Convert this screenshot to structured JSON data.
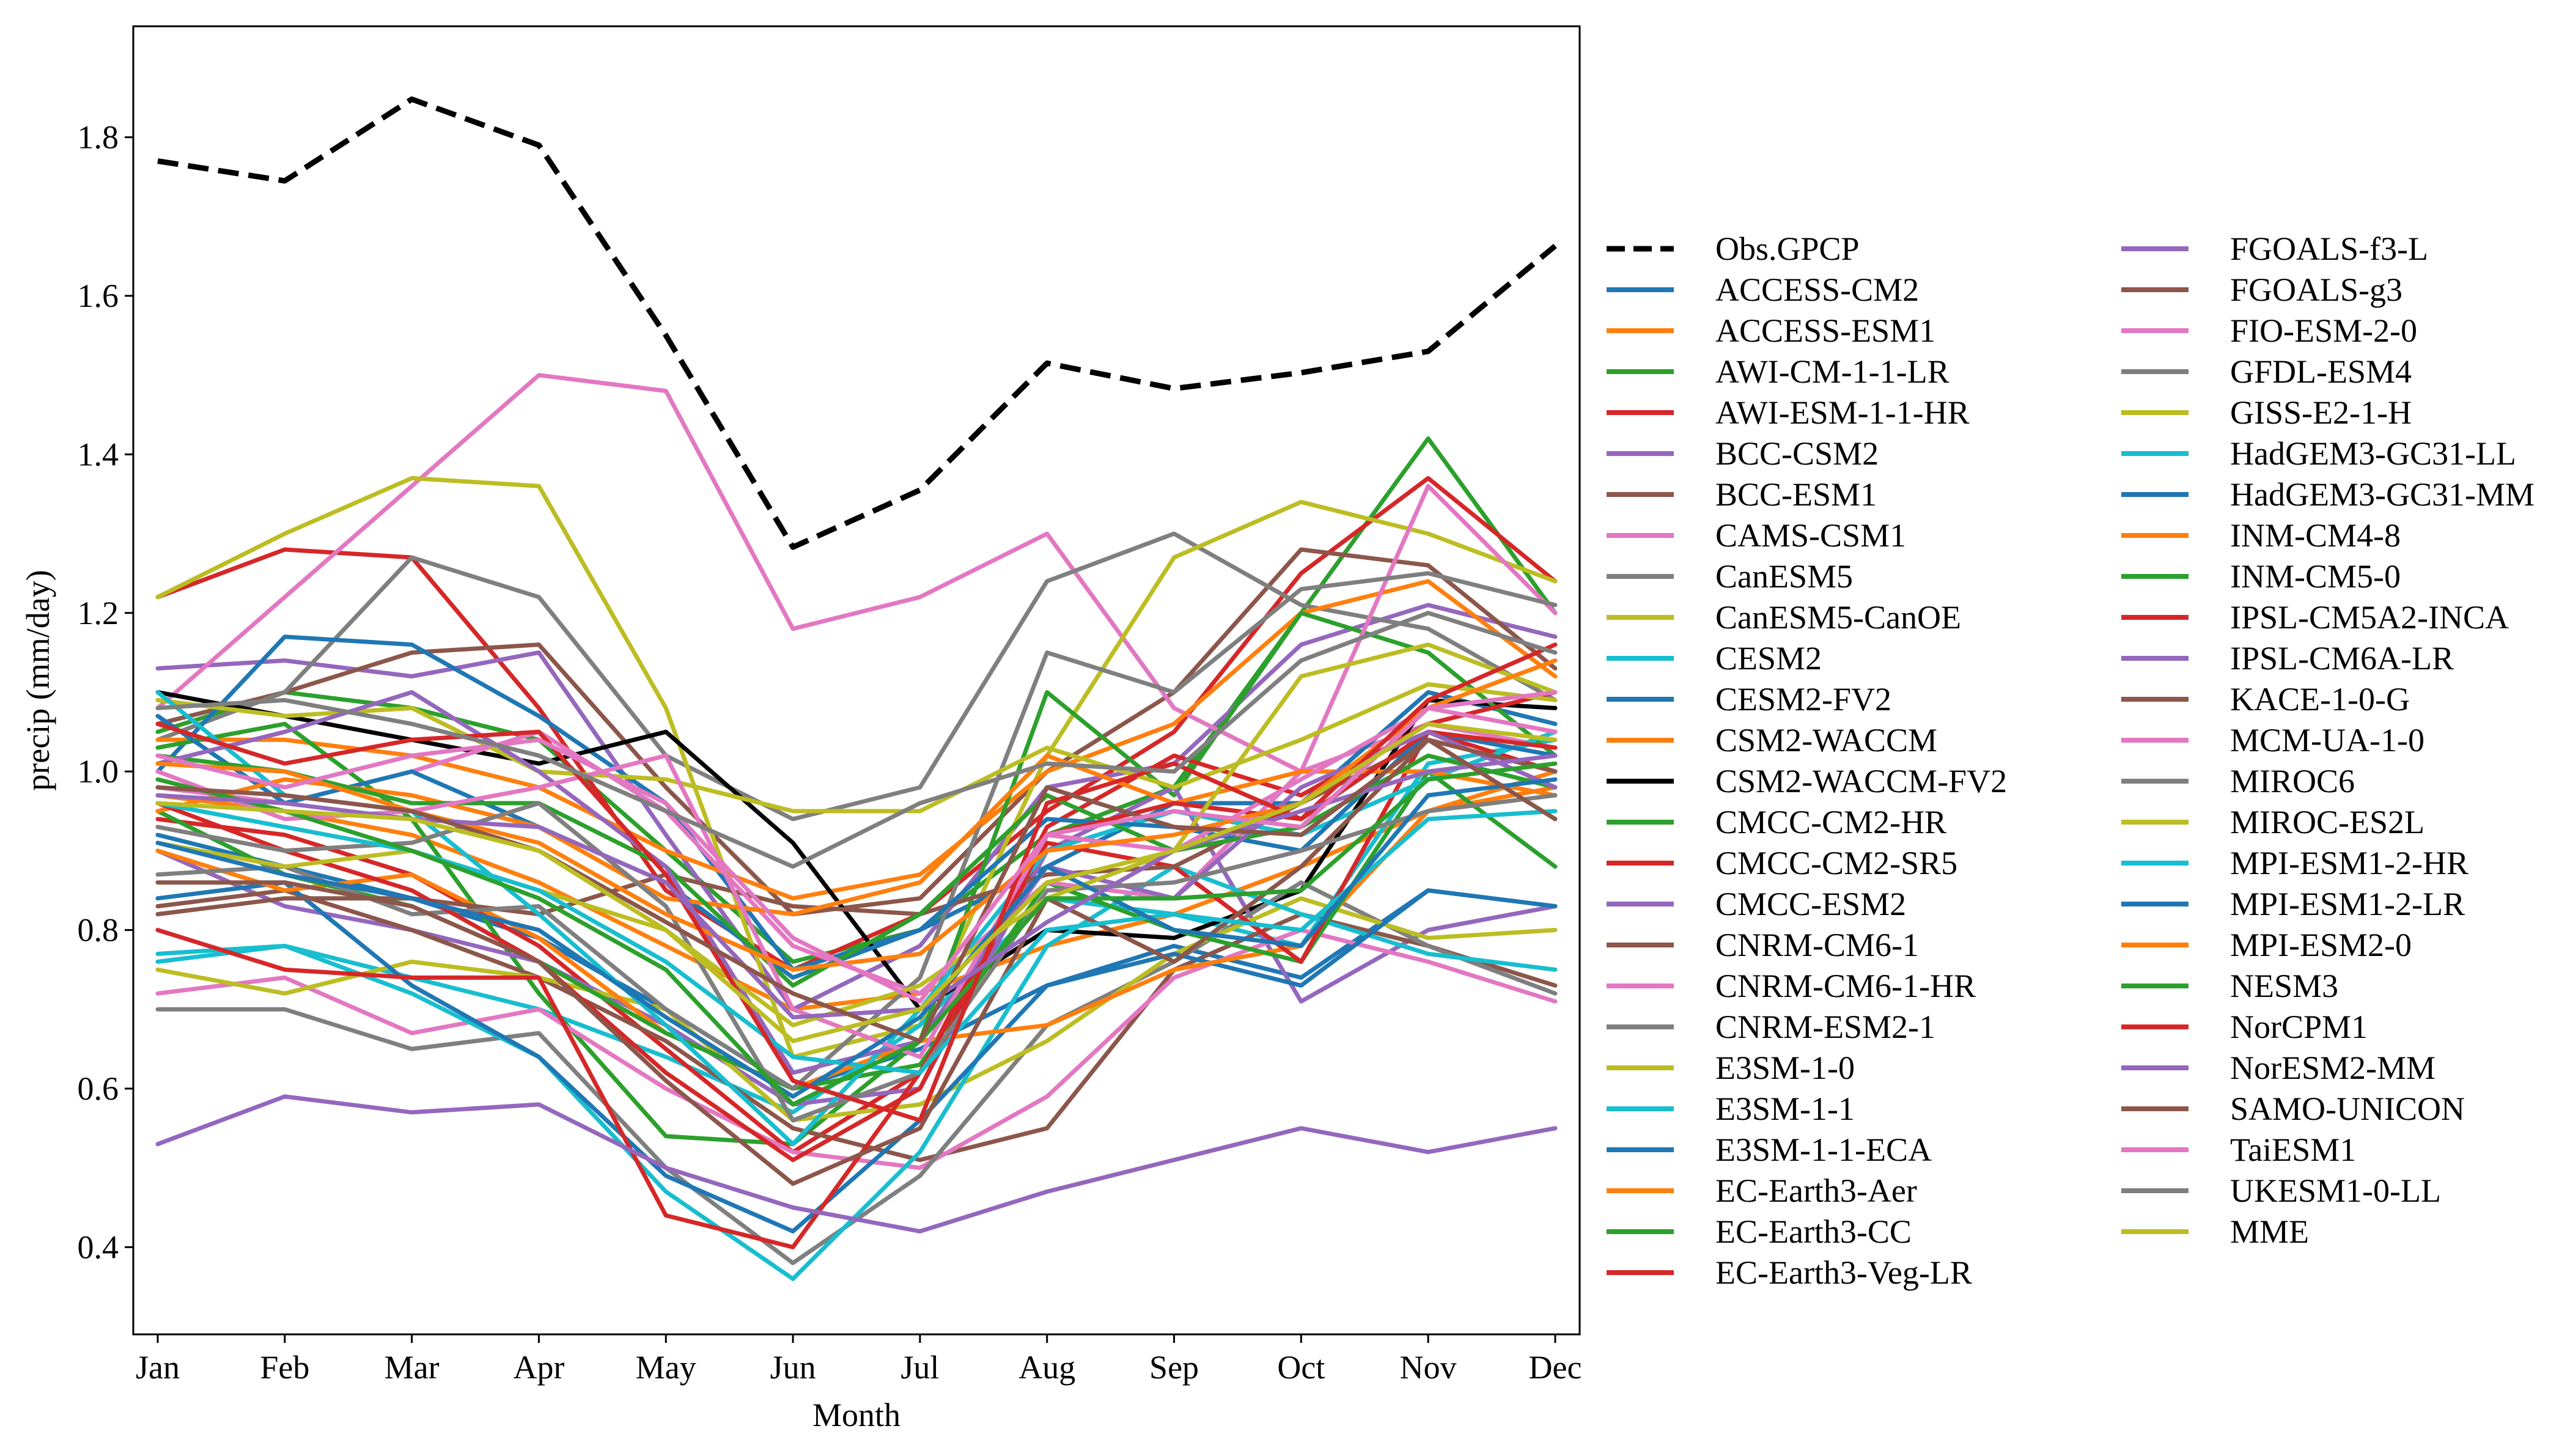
{
  "chart_data": {
    "type": "line",
    "title": "",
    "xlabel": "Month",
    "ylabel": "precip (mm/day)",
    "categories": [
      "Jan",
      "Feb",
      "Mar",
      "Apr",
      "May",
      "Jun",
      "Jul",
      "Aug",
      "Sep",
      "Oct",
      "Nov",
      "Dec"
    ],
    "ylim": [
      0.29,
      1.94
    ],
    "yticks": [
      0.4,
      0.6,
      0.8,
      1.0,
      1.2,
      1.4,
      1.6,
      1.8
    ],
    "ytick_labels": [
      "0.4",
      "0.6",
      "0.8",
      "1.0",
      "1.2",
      "1.4",
      "1.6",
      "1.8"
    ],
    "grid": false,
    "legend_position": "right, outside plot, two columns",
    "series": [
      {
        "name": "Obs.GPCP",
        "color": "#000000",
        "dashed": true,
        "values": [
          1.77,
          1.745,
          1.848,
          1.79,
          1.55,
          1.283,
          1.355,
          1.515,
          1.483,
          1.503,
          1.53,
          1.663
        ]
      },
      {
        "name": "ACCESS-CM2",
        "color": "#1f77b4",
        "values": [
          0.92,
          0.88,
          0.84,
          0.79,
          0.7,
          0.6,
          0.65,
          0.73,
          0.78,
          0.74,
          0.85,
          0.83
        ]
      },
      {
        "name": "ACCESS-ESM1",
        "color": "#ff7f0e",
        "values": [
          0.97,
          0.95,
          0.92,
          0.86,
          0.78,
          0.7,
          0.72,
          0.78,
          0.82,
          0.88,
          0.95,
          1.0
        ]
      },
      {
        "name": "AWI-CM-1-1-LR",
        "color": "#2ca02c",
        "values": [
          1.05,
          1.1,
          1.08,
          1.04,
          0.9,
          0.76,
          0.8,
          0.92,
          0.98,
          1.2,
          1.42,
          1.2
        ]
      },
      {
        "name": "AWI-ESM-1-1-HR",
        "color": "#d62728",
        "values": [
          1.22,
          1.28,
          1.27,
          1.08,
          0.85,
          0.75,
          0.82,
          0.95,
          1.05,
          1.25,
          1.37,
          1.24
        ]
      },
      {
        "name": "BCC-CSM2",
        "color": "#9467bd",
        "values": [
          1.13,
          1.14,
          1.12,
          1.15,
          0.92,
          0.7,
          0.78,
          0.98,
          1.01,
          1.16,
          1.21,
          1.17
        ]
      },
      {
        "name": "BCC-ESM1",
        "color": "#8c564b",
        "values": [
          1.06,
          1.1,
          1.15,
          1.16,
          0.98,
          0.82,
          0.84,
          1.0,
          1.1,
          1.28,
          1.26,
          1.13
        ]
      },
      {
        "name": "CAMS-CSM1",
        "color": "#e377c2",
        "values": [
          1.08,
          1.22,
          1.36,
          1.5,
          1.48,
          1.18,
          1.22,
          1.3,
          1.08,
          1.0,
          1.06,
          1.03
        ]
      },
      {
        "name": "CanESM5",
        "color": "#7f7f7f",
        "values": [
          1.04,
          1.1,
          1.27,
          1.22,
          1.02,
          0.94,
          0.98,
          1.24,
          1.3,
          1.21,
          1.18,
          1.09
        ]
      },
      {
        "name": "CanESM5-CanOE",
        "color": "#bcbd22",
        "values": [
          1.22,
          1.3,
          1.37,
          1.36,
          1.08,
          0.64,
          0.68,
          1.02,
          1.27,
          1.34,
          1.3,
          1.24
        ]
      },
      {
        "name": "CESM2",
        "color": "#17becf",
        "values": [
          0.77,
          0.78,
          0.74,
          0.7,
          0.64,
          0.57,
          0.68,
          0.84,
          0.82,
          0.78,
          1.01,
          1.04
        ]
      },
      {
        "name": "CESM2-FV2",
        "color": "#1f77b4",
        "values": [
          1.0,
          1.17,
          1.16,
          1.07,
          0.96,
          0.75,
          0.8,
          0.88,
          0.96,
          0.96,
          1.1,
          1.06
        ]
      },
      {
        "name": "CSM2-WACCM",
        "color": "#ff7f0e",
        "values": [
          1.04,
          1.04,
          1.02,
          0.98,
          0.9,
          0.84,
          0.87,
          1.0,
          1.06,
          1.2,
          1.24,
          1.12
        ]
      },
      {
        "name": "CSM2-WACCM-FV2",
        "color": "#000000",
        "values": [
          1.1,
          1.07,
          1.04,
          1.01,
          1.05,
          0.91,
          0.7,
          0.8,
          0.79,
          0.85,
          1.09,
          1.08
        ]
      },
      {
        "name": "CMCC-CM2-HR",
        "color": "#2ca02c",
        "values": [
          1.03,
          1.06,
          0.94,
          0.72,
          0.54,
          0.53,
          0.66,
          1.1,
          0.97,
          1.2,
          1.15,
          1.02
        ]
      },
      {
        "name": "CMCC-CM2-SR5",
        "color": "#d62728",
        "values": [
          0.94,
          0.92,
          0.87,
          0.78,
          0.65,
          0.52,
          0.62,
          0.93,
          1.02,
          0.97,
          1.06,
          1.1
        ]
      },
      {
        "name": "CMCC-ESM2",
        "color": "#9467bd",
        "values": [
          0.9,
          0.83,
          0.8,
          0.76,
          0.68,
          0.58,
          0.6,
          0.9,
          0.98,
          0.71,
          0.8,
          0.83
        ]
      },
      {
        "name": "CNRM-CM6-1",
        "color": "#8c564b",
        "values": [
          0.83,
          0.85,
          0.8,
          0.74,
          0.66,
          0.55,
          0.51,
          0.55,
          0.75,
          0.82,
          0.78,
          0.73
        ]
      },
      {
        "name": "CNRM-CM6-1-HR",
        "color": "#e377c2",
        "values": [
          0.72,
          0.74,
          0.67,
          0.7,
          0.6,
          0.52,
          0.5,
          0.59,
          0.74,
          0.8,
          0.76,
          0.71
        ]
      },
      {
        "name": "CNRM-ESM2-1",
        "color": "#7f7f7f",
        "values": [
          0.7,
          0.7,
          0.65,
          0.67,
          0.5,
          0.38,
          0.49,
          0.68,
          0.76,
          0.86,
          0.78,
          0.72
        ]
      },
      {
        "name": "E3SM-1-0",
        "color": "#bcbd22",
        "values": [
          0.75,
          0.72,
          0.76,
          0.74,
          0.7,
          0.56,
          0.58,
          0.66,
          0.77,
          0.84,
          0.79,
          0.8
        ]
      },
      {
        "name": "E3SM-1-1",
        "color": "#17becf",
        "values": [
          0.76,
          0.78,
          0.72,
          0.64,
          0.47,
          0.36,
          0.52,
          0.78,
          0.88,
          0.82,
          0.77,
          0.75
        ]
      },
      {
        "name": "E3SM-1-1-ECA",
        "color": "#1f77b4",
        "values": [
          0.84,
          0.86,
          0.73,
          0.64,
          0.49,
          0.42,
          0.56,
          0.73,
          0.77,
          0.73,
          0.85,
          0.83
        ]
      },
      {
        "name": "EC-Earth3-Aer",
        "color": "#ff7f0e",
        "values": [
          0.9,
          0.85,
          0.87,
          0.79,
          0.67,
          0.6,
          0.66,
          0.68,
          0.75,
          0.78,
          0.95,
          0.98
        ]
      },
      {
        "name": "EC-Earth3-CC",
        "color": "#2ca02c",
        "values": [
          0.95,
          0.87,
          0.83,
          0.76,
          0.67,
          0.6,
          0.63,
          0.86,
          0.8,
          0.76,
          1.0,
          0.88
        ]
      },
      {
        "name": "EC-Earth3-Veg-LR",
        "color": "#d62728",
        "values": [
          0.8,
          0.75,
          0.74,
          0.74,
          0.44,
          0.4,
          0.62,
          0.91,
          0.88,
          0.76,
          1.05,
          1.0
        ]
      },
      {
        "name": "FGOALS-f3-L",
        "color": "#9467bd",
        "values": [
          0.53,
          0.59,
          0.57,
          0.58,
          0.5,
          0.45,
          0.42,
          0.47,
          0.51,
          0.55,
          0.52,
          0.55
        ]
      },
      {
        "name": "FGOALS-g3",
        "color": "#8c564b",
        "values": [
          0.82,
          0.84,
          0.84,
          0.82,
          0.87,
          0.83,
          0.82,
          0.87,
          0.88,
          0.96,
          1.04,
          0.94
        ]
      },
      {
        "name": "FIO-ESM-2-0",
        "color": "#e377c2",
        "values": [
          0.98,
          0.96,
          1.0,
          1.05,
          0.95,
          0.78,
          0.72,
          0.86,
          0.84,
          1.0,
          1.36,
          1.2
        ]
      },
      {
        "name": "GFDL-ESM4",
        "color": "#7f7f7f",
        "values": [
          0.87,
          0.88,
          0.82,
          0.83,
          0.7,
          0.6,
          0.74,
          1.15,
          1.1,
          1.23,
          1.25,
          1.21
        ]
      },
      {
        "name": "GISS-E2-1-H",
        "color": "#bcbd22",
        "values": [
          1.09,
          1.07,
          1.08,
          1.0,
          0.99,
          0.95,
          0.95,
          1.03,
          0.98,
          1.04,
          1.11,
          1.09
        ]
      },
      {
        "name": "HadGEM3-GC31-LL",
        "color": "#17becf",
        "values": [
          1.1,
          0.97,
          0.95,
          0.82,
          0.68,
          0.53,
          0.7,
          0.9,
          0.95,
          0.92,
          0.99,
          1.05
        ]
      },
      {
        "name": "HadGEM3-GC31-MM",
        "color": "#1f77b4",
        "values": [
          1.07,
          0.96,
          1.0,
          0.93,
          0.86,
          0.74,
          0.8,
          0.94,
          0.93,
          0.9,
          1.05,
          1.02
        ]
      },
      {
        "name": "INM-CM4-8",
        "color": "#ff7f0e",
        "values": [
          0.95,
          0.99,
          0.97,
          0.93,
          0.84,
          0.82,
          0.86,
          1.02,
          0.96,
          1.0,
          1.0,
          0.97
        ]
      },
      {
        "name": "INM-CM5-0",
        "color": "#2ca02c",
        "values": [
          1.02,
          1.0,
          0.96,
          0.96,
          0.88,
          0.73,
          0.82,
          0.97,
          0.9,
          0.93,
          1.02,
          0.98
        ]
      },
      {
        "name": "IPSL-CM5A2-INCA",
        "color": "#d62728",
        "values": [
          0.96,
          0.9,
          0.85,
          0.76,
          0.62,
          0.51,
          0.6,
          0.92,
          0.96,
          0.94,
          1.05,
          1.03
        ]
      },
      {
        "name": "IPSL-CM6A-LR",
        "color": "#9467bd",
        "values": [
          1.01,
          1.05,
          1.1,
          1.0,
          0.88,
          0.62,
          0.66,
          0.88,
          0.84,
          0.98,
          1.05,
          0.98
        ]
      },
      {
        "name": "KACE-1-0-G",
        "color": "#8c564b",
        "values": [
          0.86,
          0.86,
          0.83,
          0.76,
          0.61,
          0.48,
          0.55,
          0.84,
          0.76,
          0.88,
          1.04,
          1.0
        ]
      },
      {
        "name": "MCM-UA-1-0",
        "color": "#e377c2",
        "values": [
          1.0,
          0.94,
          0.95,
          0.98,
          1.02,
          0.7,
          0.64,
          0.92,
          0.9,
          0.99,
          1.08,
          1.05
        ]
      },
      {
        "name": "MIROC6",
        "color": "#7f7f7f",
        "values": [
          0.93,
          0.9,
          0.91,
          0.96,
          0.83,
          0.56,
          0.62,
          0.85,
          0.86,
          0.9,
          0.95,
          0.97
        ]
      },
      {
        "name": "MIROC-ES2L",
        "color": "#bcbd22",
        "values": [
          0.91,
          0.88,
          0.9,
          0.85,
          0.8,
          0.68,
          0.73,
          0.84,
          0.9,
          1.12,
          1.16,
          1.1
        ]
      },
      {
        "name": "MPI-ESM1-2-HR",
        "color": "#17becf",
        "values": [
          0.96,
          0.93,
          0.9,
          0.85,
          0.76,
          0.64,
          0.62,
          0.8,
          0.82,
          0.8,
          0.94,
          0.95
        ]
      },
      {
        "name": "MPI-ESM1-2-LR",
        "color": "#1f77b4",
        "values": [
          0.91,
          0.87,
          0.84,
          0.8,
          0.69,
          0.59,
          0.69,
          0.88,
          0.8,
          0.78,
          0.97,
          0.99
        ]
      },
      {
        "name": "MPI-ESM2-0",
        "color": "#ff7f0e",
        "values": [
          1.01,
          1.0,
          0.95,
          0.91,
          0.82,
          0.75,
          0.77,
          0.9,
          0.92,
          0.96,
          1.08,
          1.14
        ]
      },
      {
        "name": "NESM3",
        "color": "#2ca02c",
        "values": [
          0.99,
          0.95,
          0.9,
          0.84,
          0.75,
          0.58,
          0.66,
          0.84,
          0.84,
          0.85,
          0.99,
          1.01
        ]
      },
      {
        "name": "NorCPM1",
        "color": "#d62728",
        "values": [
          1.06,
          1.01,
          1.04,
          1.05,
          0.87,
          0.61,
          0.56,
          0.96,
          1.01,
          0.94,
          1.09,
          1.16
        ]
      },
      {
        "name": "NorESM2-MM",
        "color": "#9467bd",
        "values": [
          0.97,
          0.96,
          0.94,
          0.93,
          0.86,
          0.69,
          0.7,
          0.81,
          0.9,
          0.95,
          1.0,
          1.02
        ]
      },
      {
        "name": "SAMO-UNICON",
        "color": "#8c564b",
        "values": [
          0.98,
          0.97,
          0.95,
          0.9,
          0.81,
          0.72,
          0.66,
          0.98,
          0.93,
          0.92,
          1.04,
          0.94
        ]
      },
      {
        "name": "TaiESM1",
        "color": "#e377c2",
        "values": [
          1.02,
          0.98,
          1.02,
          1.04,
          0.96,
          0.79,
          0.71,
          0.92,
          0.95,
          0.93,
          1.08,
          1.1
        ]
      },
      {
        "name": "UKESM1-0-LL",
        "color": "#7f7f7f",
        "values": [
          1.08,
          1.09,
          1.06,
          1.02,
          0.95,
          0.88,
          0.96,
          1.01,
          1.0,
          1.14,
          1.2,
          1.15
        ]
      },
      {
        "name": "MME",
        "color": "#bcbd22",
        "values": [
          0.96,
          0.95,
          0.94,
          0.9,
          0.8,
          0.66,
          0.7,
          0.86,
          0.9,
          0.96,
          1.06,
          1.04
        ]
      }
    ]
  }
}
